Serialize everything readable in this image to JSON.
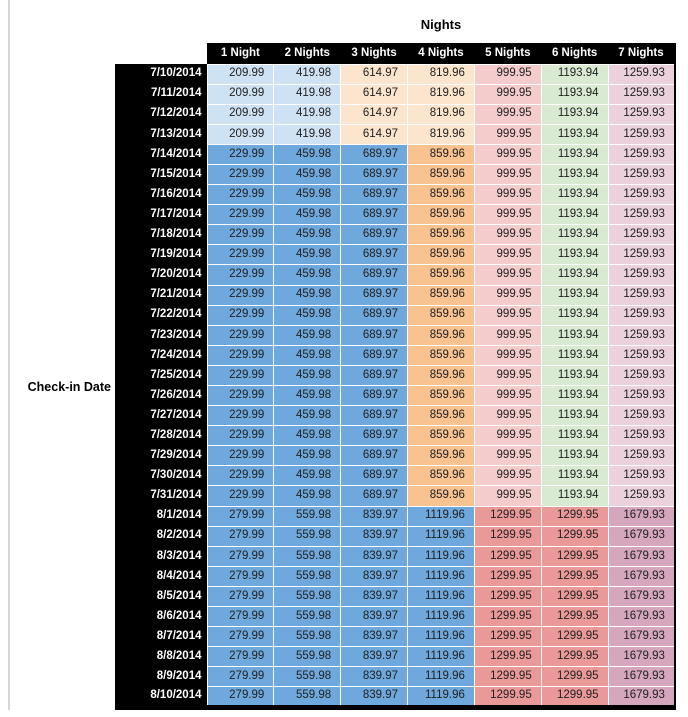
{
  "title": "Nights",
  "row_axis_label": "Check-in Date",
  "colors": {
    "light_blue": "#cfe2f3",
    "medium_blue": "#6fa8dc",
    "light_orange": "#fce5cd",
    "medium_orange": "#f8c291",
    "light_red": "#f4cccc",
    "medium_red": "#ea9999",
    "light_green": "#d9ead3",
    "light_magenta": "#ead1dc",
    "medium_magenta": "#d5a6bd",
    "header_bg": "#000000",
    "header_text": "#ffffff"
  },
  "table": {
    "columns": [
      "1 Night",
      "2 Nights",
      "3 Nights",
      "4 Nights",
      "5 Nights",
      "6 Nights",
      "7 Nights"
    ],
    "tiers": {
      "A": {
        "values": [
          "209.99",
          "419.98",
          "614.97",
          "819.96",
          "999.95",
          "1193.94",
          "1259.93"
        ],
        "cell_colors": [
          "light_blue",
          "light_blue",
          "light_orange",
          "light_orange",
          "light_red",
          "light_green",
          "light_magenta"
        ]
      },
      "B": {
        "values": [
          "229.99",
          "459.98",
          "689.97",
          "859.96",
          "999.95",
          "1193.94",
          "1259.93"
        ],
        "cell_colors": [
          "medium_blue",
          "medium_blue",
          "medium_blue",
          "medium_orange",
          "light_red",
          "light_green",
          "light_magenta"
        ]
      },
      "C": {
        "values": [
          "279.99",
          "559.98",
          "839.97",
          "1119.96",
          "1299.95",
          "1299.95",
          "1679.93"
        ],
        "cell_colors": [
          "medium_blue",
          "medium_blue",
          "medium_blue",
          "medium_blue",
          "medium_red",
          "medium_red",
          "medium_magenta"
        ]
      }
    },
    "rows": [
      {
        "date": "7/10/2014",
        "tier": "A"
      },
      {
        "date": "7/11/2014",
        "tier": "A"
      },
      {
        "date": "7/12/2014",
        "tier": "A"
      },
      {
        "date": "7/13/2014",
        "tier": "A"
      },
      {
        "date": "7/14/2014",
        "tier": "B"
      },
      {
        "date": "7/15/2014",
        "tier": "B"
      },
      {
        "date": "7/16/2014",
        "tier": "B"
      },
      {
        "date": "7/17/2014",
        "tier": "B"
      },
      {
        "date": "7/18/2014",
        "tier": "B"
      },
      {
        "date": "7/19/2014",
        "tier": "B"
      },
      {
        "date": "7/20/2014",
        "tier": "B"
      },
      {
        "date": "7/21/2014",
        "tier": "B"
      },
      {
        "date": "7/22/2014",
        "tier": "B"
      },
      {
        "date": "7/23/2014",
        "tier": "B"
      },
      {
        "date": "7/24/2014",
        "tier": "B"
      },
      {
        "date": "7/25/2014",
        "tier": "B"
      },
      {
        "date": "7/26/2014",
        "tier": "B"
      },
      {
        "date": "7/27/2014",
        "tier": "B"
      },
      {
        "date": "7/28/2014",
        "tier": "B"
      },
      {
        "date": "7/29/2014",
        "tier": "B"
      },
      {
        "date": "7/30/2014",
        "tier": "B"
      },
      {
        "date": "7/31/2014",
        "tier": "B"
      },
      {
        "date": "8/1/2014",
        "tier": "C"
      },
      {
        "date": "8/2/2014",
        "tier": "C"
      },
      {
        "date": "8/3/2014",
        "tier": "C"
      },
      {
        "date": "8/4/2014",
        "tier": "C"
      },
      {
        "date": "8/5/2014",
        "tier": "C"
      },
      {
        "date": "8/6/2014",
        "tier": "C"
      },
      {
        "date": "8/7/2014",
        "tier": "C"
      },
      {
        "date": "8/8/2014",
        "tier": "C"
      },
      {
        "date": "8/9/2014",
        "tier": "C"
      },
      {
        "date": "8/10/2014",
        "tier": "C"
      }
    ]
  }
}
